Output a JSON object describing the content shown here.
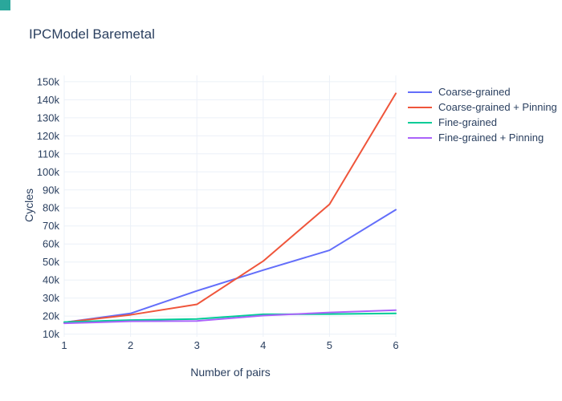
{
  "page": {
    "corner_marker_color": "#2aa79b",
    "background": "#ffffff"
  },
  "chart_data": {
    "type": "line",
    "title": "IPCModel Baremetal",
    "xlabel": "Number of pairs",
    "ylabel": "Cycles",
    "x": [
      1,
      2,
      3,
      4,
      5,
      6
    ],
    "series": [
      {
        "name": "Coarse-grained",
        "color": "#636efa",
        "values": [
          16500,
          21500,
          34000,
          45500,
          56500,
          79000
        ]
      },
      {
        "name": "Coarse-grained + Pinning",
        "color": "#ef553b",
        "values": [
          16500,
          20700,
          26500,
          50500,
          82000,
          143500
        ]
      },
      {
        "name": "Fine-grained",
        "color": "#00cc96",
        "values": [
          16700,
          17800,
          18400,
          21000,
          21100,
          21500
        ]
      },
      {
        "name": "Fine-grained + Pinning",
        "color": "#ab63fa",
        "values": [
          16000,
          17100,
          17300,
          20300,
          22000,
          23300
        ]
      }
    ],
    "xlim": [
      1,
      6
    ],
    "ylim": [
      8500,
      153500
    ],
    "xticks": [
      1,
      2,
      3,
      4,
      5,
      6
    ],
    "xtick_labels": [
      "1",
      "2",
      "3",
      "4",
      "5",
      "6"
    ],
    "yticks": [
      10000,
      20000,
      30000,
      40000,
      50000,
      60000,
      70000,
      80000,
      90000,
      100000,
      110000,
      120000,
      130000,
      140000,
      150000
    ],
    "ytick_labels": [
      "10k",
      "20k",
      "30k",
      "40k",
      "50k",
      "60k",
      "70k",
      "80k",
      "90k",
      "100k",
      "110k",
      "120k",
      "130k",
      "140k",
      "150k"
    ],
    "grid": true,
    "legend_position": "right",
    "colors": {
      "text": "#2a3f5f",
      "grid": "#ebf0f8",
      "background": "#ffffff"
    }
  }
}
